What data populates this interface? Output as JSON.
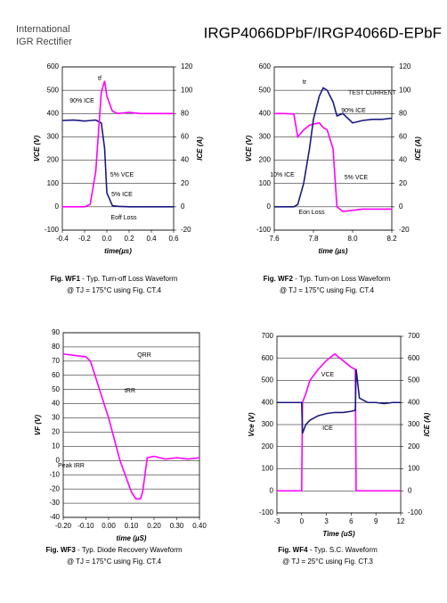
{
  "header": {
    "logo_line1": "International",
    "logo_line2": "IGR Rectifier",
    "part_number": "IRGP4066DPbF/IRGP4066D-EPbF"
  },
  "chart_data": [
    {
      "type": "line",
      "xlabel": "time(µs)",
      "ylabel": "VCE (V)",
      "y2label": "ICE (A)",
      "caption_fig": "Fig. WF1",
      "caption_text": " - Typ. Turn-off Loss Waveform",
      "caption_cond": "@ TJ = 175°C using Fig. CT.4",
      "annotations": [
        "tf",
        "90% ICE",
        "5% VCE",
        "5% ICE",
        "Eoff Loss"
      ],
      "x": [
        -0.4,
        -0.3,
        -0.2,
        -0.15,
        -0.1,
        -0.05,
        -0.02,
        0,
        0.05,
        0.1,
        0.2,
        0.3,
        0.4,
        0.5,
        0.6
      ],
      "series": [
        {
          "color": "#1a1a80",
          "values": [
            370,
            372,
            368,
            370,
            372,
            360,
            250,
            60,
            5,
            2,
            0,
            0,
            0,
            0,
            0
          ]
        },
        {
          "color": "#ff00ff",
          "axis": "y2",
          "values": [
            0,
            0,
            0,
            2,
            30,
            98,
            108,
            95,
            82,
            80,
            81,
            80,
            80,
            80,
            80
          ]
        }
      ],
      "xlim": [
        -0.4,
        0.6
      ],
      "xticks": [
        -0.4,
        -0.2,
        {
          "value": 0,
          "label": "0.0"
        },
        0.2,
        0.4,
        0.6
      ],
      "ylim": [
        -100,
        600
      ],
      "yticks": [
        -100,
        0,
        100,
        200,
        300,
        400,
        500,
        600
      ],
      "y2lim": [
        -20,
        120
      ],
      "y2ticks": [
        -20,
        0,
        20,
        40,
        60,
        80,
        100,
        120
      ],
      "grid": true
    },
    {
      "type": "line",
      "xlabel": "time (µs)",
      "ylabel": "VCE (V)",
      "y2label": "ICE (A)",
      "caption_fig": "Fig. WF2",
      "caption_text": " - Typ. Turn-on Loss Waveform",
      "caption_cond": "@ TJ = 175°C using Fig. CT.4",
      "annotations": [
        "tr",
        "TEST CURRENT",
        "90% ICE",
        "10% ICE",
        "5% VCE",
        "Eon Loss"
      ],
      "x": [
        7.6,
        7.65,
        7.7,
        7.72,
        7.75,
        7.78,
        7.8,
        7.83,
        7.85,
        7.87,
        7.9,
        7.92,
        7.95,
        8.0,
        8.05,
        8.1,
        8.15,
        8.2
      ],
      "series": [
        {
          "color": "#ff00ff",
          "values": [
            400,
            400,
            398,
            300,
            330,
            350,
            355,
            360,
            340,
            330,
            250,
            0,
            -20,
            -15,
            -10,
            -10,
            -10,
            -10
          ]
        },
        {
          "color": "#1a1a80",
          "axis": "y2",
          "values": [
            0,
            0,
            0,
            2,
            20,
            50,
            75,
            95,
            102,
            100,
            90,
            78,
            80,
            72,
            74,
            75,
            75,
            76
          ]
        }
      ],
      "xlim": [
        7.6,
        8.2
      ],
      "xticks": [
        7.6,
        7.8,
        {
          "value": 8,
          "label": "8.0"
        },
        8.2
      ],
      "ylim": [
        -100,
        600
      ],
      "yticks": [
        -100,
        0,
        100,
        200,
        300,
        400,
        500,
        600
      ],
      "y2lim": [
        -20,
        120
      ],
      "y2ticks": [
        -20,
        0,
        20,
        40,
        60,
        80,
        100,
        120
      ],
      "grid": true
    },
    {
      "type": "line",
      "xlabel": "time (µS)",
      "ylabel": "VF (V)",
      "caption_fig": "Fig. WF3",
      "caption_text": " - Typ. Diode Recovery Waveform",
      "caption_cond": "@ TJ = 175°C using Fig. CT.4",
      "annotations": [
        "QRR",
        "tRR",
        "Peak IRR"
      ],
      "x": [
        -0.2,
        -0.15,
        -0.1,
        -0.08,
        -0.05,
        0,
        0.05,
        0.1,
        0.12,
        0.14,
        0.15,
        0.17,
        0.2,
        0.25,
        0.3,
        0.35,
        0.4
      ],
      "series": [
        {
          "color": "#ff00ff",
          "values": [
            75,
            74,
            73,
            70,
            55,
            30,
            0,
            -22,
            -27,
            -27,
            -22,
            2,
            3,
            1,
            2,
            1,
            2
          ]
        }
      ],
      "xlim": [
        -0.2,
        0.4
      ],
      "xticks": [
        {
          "value": -0.2,
          "label": "-0.20"
        },
        {
          "value": -0.1,
          "label": "-0.10"
        },
        {
          "value": 0,
          "label": "0.00"
        },
        {
          "value": 0.1,
          "label": "0.10"
        },
        {
          "value": 0.2,
          "label": "0.20"
        },
        {
          "value": 0.3,
          "label": "0.30"
        },
        {
          "value": 0.4,
          "label": "0.40"
        }
      ],
      "ylim": [
        -40,
        90
      ],
      "yticks": [
        -40,
        -30,
        -20,
        -10,
        0,
        10,
        20,
        30,
        40,
        50,
        60,
        70,
        80,
        90
      ],
      "grid": true
    },
    {
      "type": "line",
      "xlabel": "Time (uS)",
      "ylabel": "Vce (V)",
      "y2label": "ICE (A)",
      "caption_fig": "Fig. WF4",
      "caption_text": " - Typ. S.C. Waveform",
      "caption_cond": "@ TJ = 25°C using Fig. CT.3",
      "annotations": [
        "VCE",
        "ICE"
      ],
      "x": [
        -3,
        -1,
        0,
        0.1,
        0.5,
        1,
        2,
        3,
        4,
        5,
        6,
        6.5,
        6.6,
        7,
        8,
        9,
        10,
        11,
        12
      ],
      "series": [
        {
          "color": "#ff00ff",
          "values": [
            0,
            0,
            0,
            400,
            440,
            500,
            550,
            590,
            620,
            590,
            560,
            550,
            0,
            0,
            0,
            0,
            0,
            0,
            0
          ]
        },
        {
          "color": "#1a1a80",
          "axis": "y2",
          "values": [
            400,
            400,
            400,
            260,
            300,
            320,
            340,
            350,
            355,
            355,
            360,
            365,
            550,
            420,
            400,
            400,
            395,
            400,
            400
          ]
        }
      ],
      "xlim": [
        -3,
        12
      ],
      "xticks": [
        -3,
        0,
        3,
        6,
        9,
        12
      ],
      "ylim": [
        -100,
        700
      ],
      "yticks": [
        -100,
        0,
        100,
        200,
        300,
        400,
        500,
        600,
        700
      ],
      "y2lim": [
        -100,
        700
      ],
      "y2ticks": [
        -100,
        0,
        100,
        200,
        300,
        400,
        500,
        600,
        700
      ],
      "grid": true
    }
  ]
}
